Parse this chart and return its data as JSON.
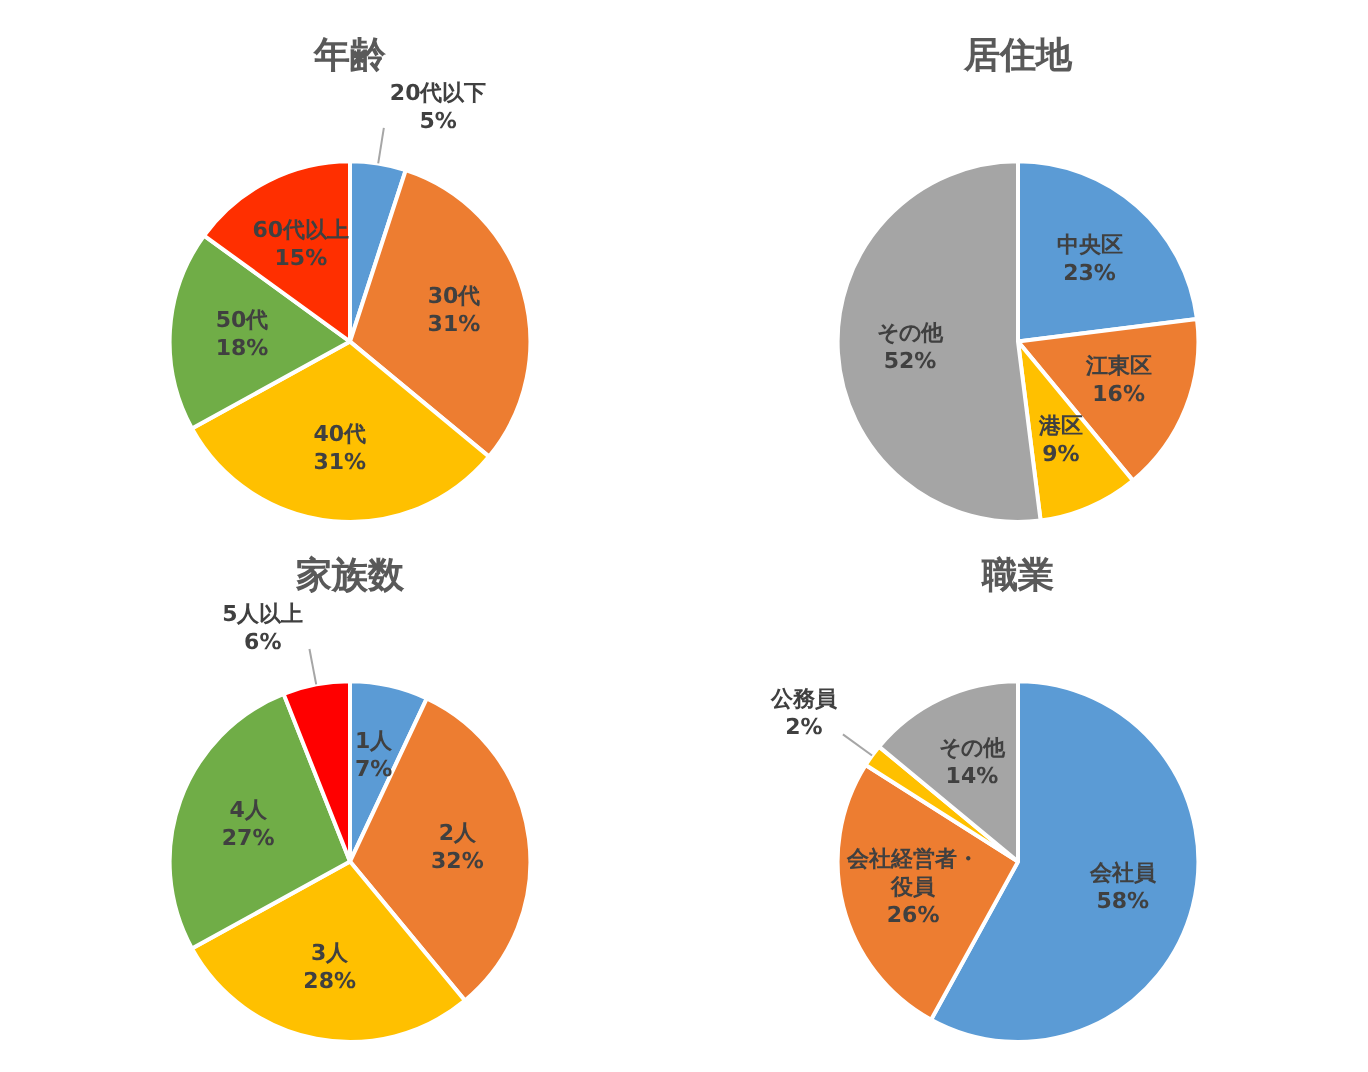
{
  "chart_data": [
    {
      "type": "pie",
      "title": "年齢",
      "categories": [
        "20代以下",
        "30代",
        "40代",
        "50代",
        "60代以上"
      ],
      "values": [
        5,
        31,
        31,
        18,
        15
      ],
      "colors": [
        "#5b9bd5",
        "#ed7d31",
        "#ffc000",
        "#70ad47",
        "#ff2f00"
      ],
      "value_labels": [
        "5%",
        "31%",
        "31%",
        "18%",
        "15%"
      ],
      "legend": false
    },
    {
      "type": "pie",
      "title": "居住地",
      "categories": [
        "中央区",
        "江東区",
        "港区",
        "その他"
      ],
      "values": [
        23,
        16,
        9,
        52
      ],
      "colors": [
        "#5b9bd5",
        "#ed7d31",
        "#ffc000",
        "#a5a5a5"
      ],
      "value_labels": [
        "23%",
        "16%",
        "9%",
        "52%"
      ],
      "legend": false
    },
    {
      "type": "pie",
      "title": "家族数",
      "categories": [
        "1人",
        "2人",
        "3人",
        "4人",
        "5人以上"
      ],
      "values": [
        7,
        32,
        28,
        27,
        6
      ],
      "colors": [
        "#5b9bd5",
        "#ed7d31",
        "#ffc000",
        "#70ad47",
        "#ff0000"
      ],
      "value_labels": [
        "7%",
        "32%",
        "28%",
        "27%",
        "6%"
      ],
      "legend": false
    },
    {
      "type": "pie",
      "title": "職業",
      "categories": [
        "会社員",
        "会社経営者・役員",
        "公務員",
        "その他"
      ],
      "values": [
        58,
        26,
        2,
        14
      ],
      "colors": [
        "#5b9bd5",
        "#ed7d31",
        "#ffc000",
        "#a5a5a5"
      ],
      "value_labels": [
        "58%",
        "26%",
        "2%",
        "14%"
      ],
      "legend": false
    }
  ]
}
